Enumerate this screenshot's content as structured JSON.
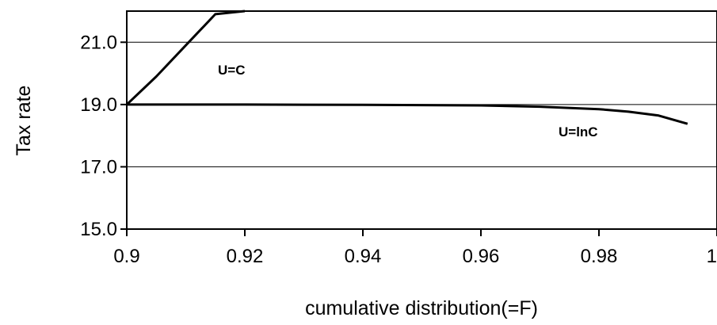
{
  "chart_data": {
    "type": "line",
    "title": "",
    "xlabel": "cumulative distribution(=F)",
    "ylabel": "Tax rate",
    "xlim": [
      0.9,
      1.0
    ],
    "ylim": [
      15.0,
      22.0
    ],
    "xticks": [
      0.9,
      0.92,
      0.94,
      0.96,
      0.98,
      1.0
    ],
    "xtick_labels": [
      "0.9",
      "0.92",
      "0.94",
      "0.96",
      "0.98",
      "1"
    ],
    "yticks": [
      15.0,
      17.0,
      19.0,
      21.0
    ],
    "ytick_labels": [
      "15.0",
      "17.0",
      "19.0",
      "21.0"
    ],
    "grid": "horizontal",
    "legend": "none",
    "series": [
      {
        "name": "U=C",
        "x": [
          0.9,
          0.905,
          0.91,
          0.915,
          0.92
        ],
        "y": [
          19.0,
          19.9,
          20.9,
          21.9,
          22.0
        ]
      },
      {
        "name": "U=lnC",
        "x": [
          0.9,
          0.92,
          0.94,
          0.96,
          0.97,
          0.98,
          0.985,
          0.99,
          0.995
        ],
        "y": [
          19.0,
          19.0,
          18.99,
          18.97,
          18.93,
          18.85,
          18.77,
          18.65,
          18.38
        ]
      }
    ],
    "annotations": [
      "U=C",
      "U=lnC"
    ],
    "colors": {
      "line": "#000000",
      "grid": "#000000"
    }
  }
}
